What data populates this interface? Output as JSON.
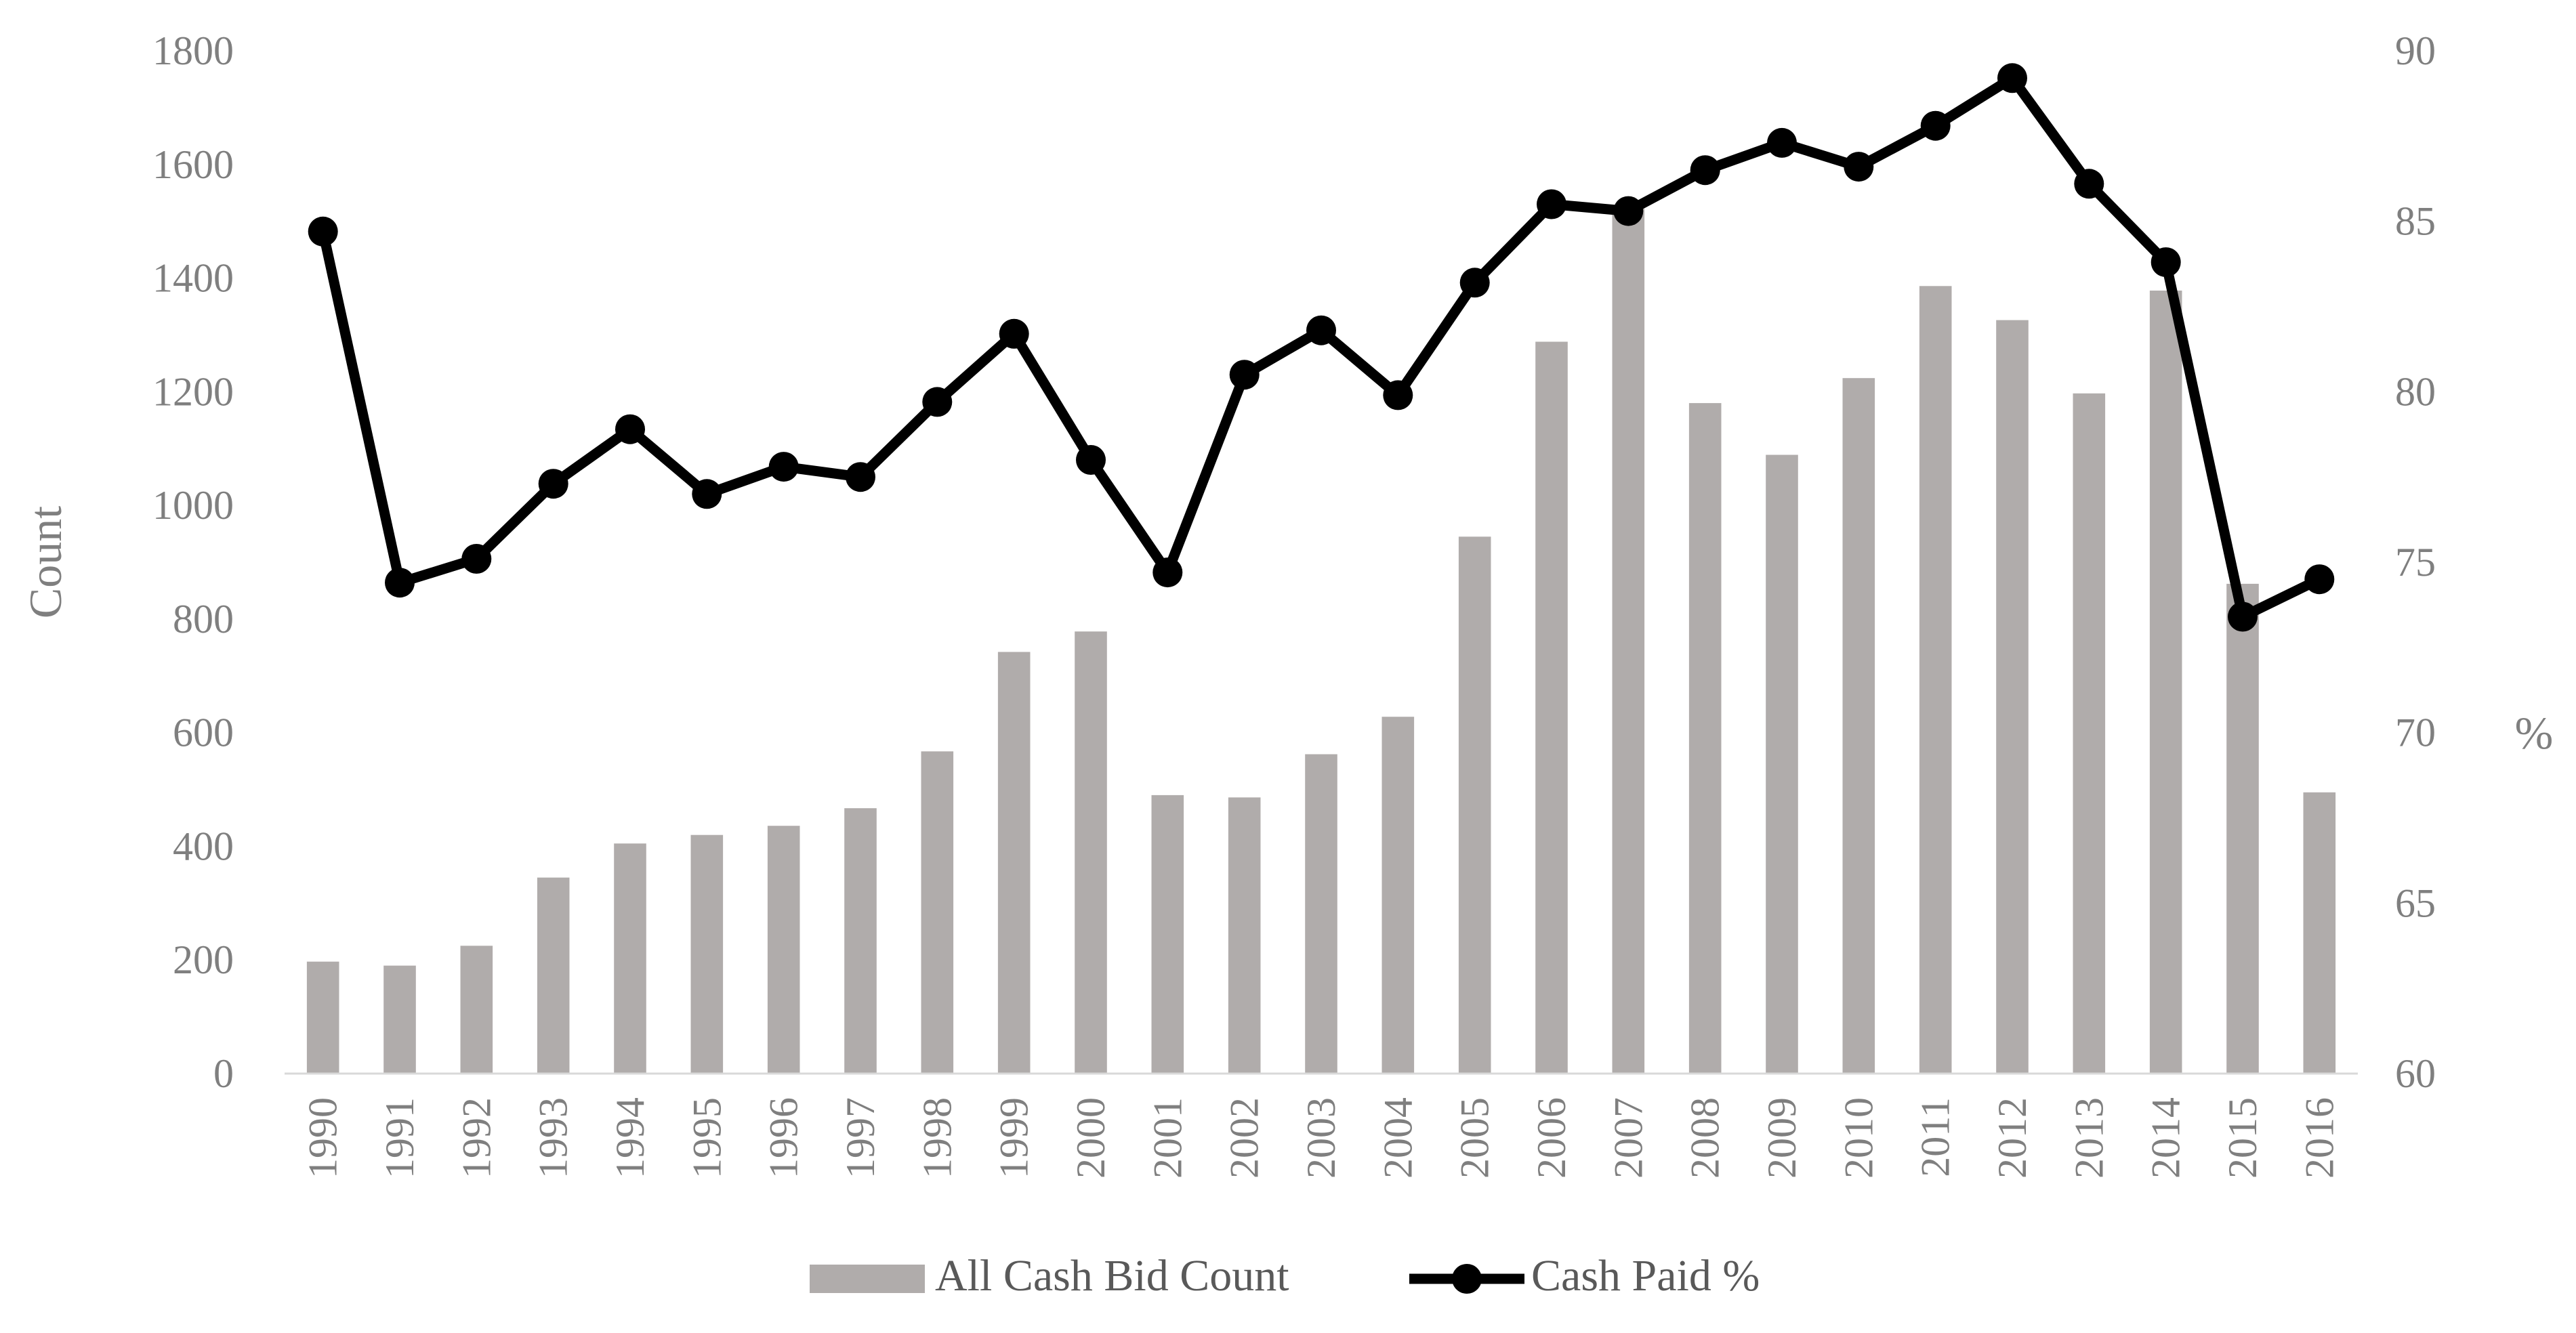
{
  "chart_data": {
    "type": "bar+line",
    "title": "",
    "xlabel": "",
    "ylabel": "Count",
    "y2label": "%",
    "ylim": [
      0,
      1800
    ],
    "y2lim": [
      60,
      90
    ],
    "yticks": [
      0,
      200,
      400,
      600,
      800,
      1000,
      1200,
      1400,
      1600,
      1800
    ],
    "y2ticks": [
      60,
      65,
      70,
      75,
      80,
      85,
      90
    ],
    "grid": false,
    "legend_position": "bottom",
    "categories": [
      "1990",
      "1991",
      "1992",
      "1993",
      "1994",
      "1995",
      "1996",
      "1997",
      "1998",
      "1999",
      "2000",
      "2001",
      "2002",
      "2003",
      "2004",
      "2005",
      "2006",
      "2007",
      "2008",
      "2009",
      "2010",
      "2011",
      "2012",
      "2013",
      "2014",
      "2015",
      "2016"
    ],
    "series": [
      {
        "name": "All Cash Bid Count",
        "type": "bar",
        "axis": "left",
        "color": "#b0acab",
        "values": [
          197,
          190,
          225,
          345,
          405,
          420,
          436,
          467,
          567,
          742,
          778,
          490,
          486,
          562,
          628,
          945,
          1288,
          1522,
          1180,
          1089,
          1224,
          1386,
          1326,
          1197,
          1378,
          862,
          495
        ]
      },
      {
        "name": "Cash Paid %",
        "type": "line",
        "axis": "right",
        "color": "#000000",
        "values": [
          84.7,
          74.4,
          75.1,
          77.3,
          78.9,
          77.0,
          77.8,
          77.5,
          79.7,
          81.7,
          78.0,
          74.7,
          80.5,
          81.8,
          79.9,
          83.2,
          85.5,
          85.3,
          86.5,
          87.3,
          86.6,
          87.8,
          89.2,
          86.1,
          83.8,
          73.4,
          74.5
        ]
      }
    ]
  }
}
